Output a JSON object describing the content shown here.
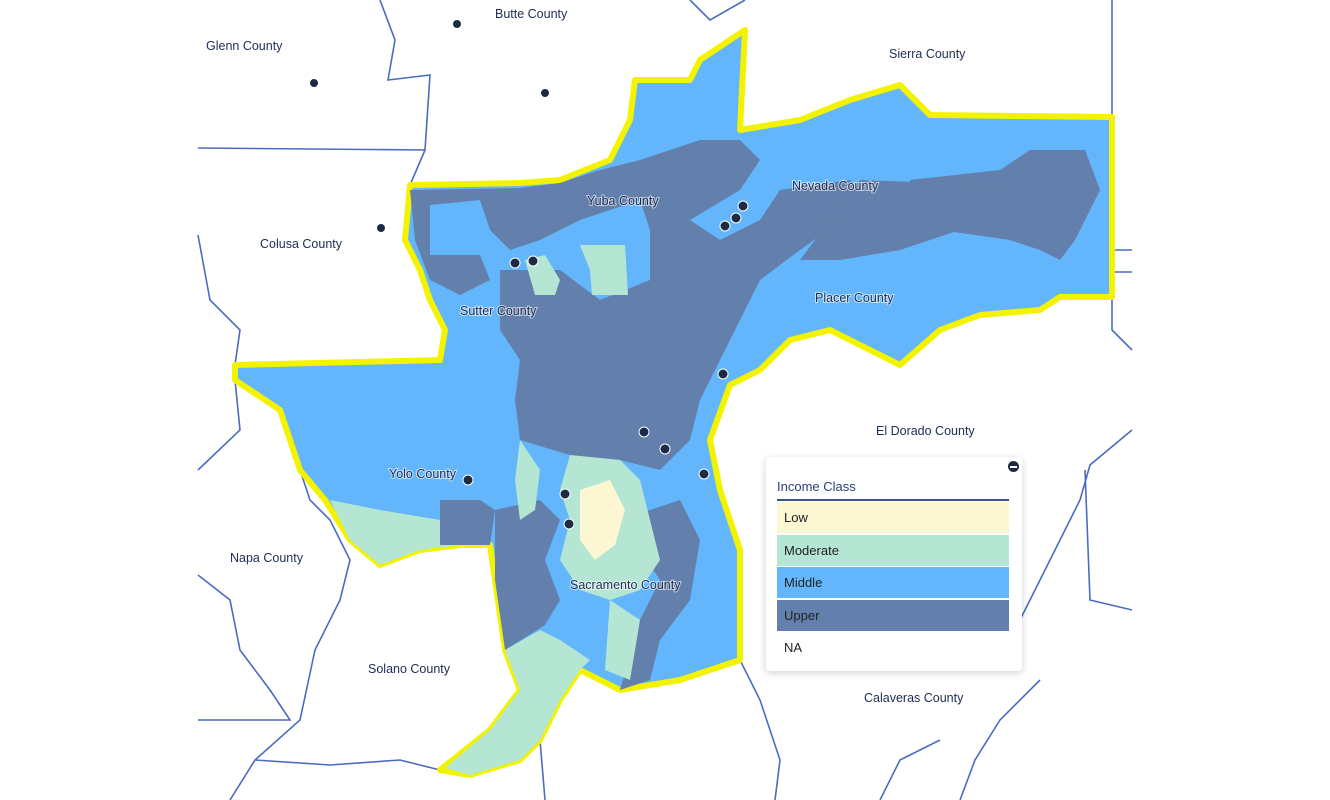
{
  "map": {
    "colors": {
      "low": "#fdf6d3",
      "moderate": "#b4e6d3",
      "middle": "#63b6fb",
      "upper": "#637fab",
      "county_line": "#4a6cc0",
      "highlight_outline": "#f3f300",
      "marker": "#1d2a44"
    },
    "county_labels": [
      "Butte County",
      "Glenn County",
      "Sierra County",
      "Nevada County",
      "Yuba County",
      "Colusa County",
      "Placer County",
      "Sutter County",
      "El Dorado County",
      "Yolo County",
      "Napa County",
      "Sacramento County",
      "Solano County",
      "Calaveras County"
    ],
    "marker_icon": "bank-branch-icon"
  },
  "legend": {
    "title": "Income Class",
    "collapse_icon": "minus-circle-icon",
    "items": [
      {
        "label": "Low",
        "color": "#fdf6d3"
      },
      {
        "label": "Moderate",
        "color": "#b4e6d3"
      },
      {
        "label": "Middle",
        "color": "#63b6fb"
      },
      {
        "label": "Upper",
        "color": "#637fab"
      },
      {
        "label": "NA",
        "color": "#ffffff"
      }
    ]
  }
}
